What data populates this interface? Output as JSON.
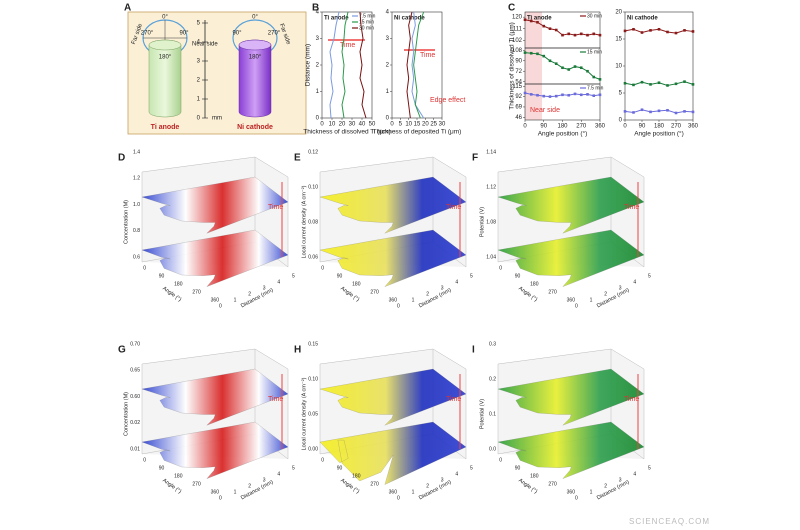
{
  "figure": {
    "panel_labels": [
      "A",
      "B",
      "C",
      "D",
      "E",
      "F",
      "G",
      "H",
      "I"
    ],
    "watermark": "SCIENCEAQ.COM"
  },
  "panel_a": {
    "ti_angles": [
      "0°",
      "270°",
      "90°",
      "180°"
    ],
    "ni_angles": [
      "0°",
      "90°",
      "270°",
      "180°"
    ],
    "near_side": "Near side",
    "far_side": "Far side",
    "scale_ticks": [
      0,
      1,
      2,
      3,
      4,
      5
    ],
    "unit": "mm",
    "ti_label": "Ti anode",
    "ni_label": "Ni cathode"
  },
  "chart_data": [
    {
      "type": "line",
      "title": "Ti anode",
      "ylabel": "Distance (mm)",
      "xlabel": "Thickness of dissolved Ti (μm)",
      "xlim": [
        0,
        50
      ],
      "ylim": [
        0,
        4
      ],
      "xticks": [
        0,
        10,
        20,
        30,
        40,
        50
      ],
      "yticks": [
        0,
        1,
        2,
        3,
        4
      ],
      "annotations": [
        "Time"
      ],
      "series": [
        {
          "name": "7.5 min",
          "color": "#7b9be0",
          "x": [
            9,
            8,
            11,
            9,
            10,
            8,
            12,
            14,
            17
          ],
          "values": [
            0,
            0.5,
            1,
            1.5,
            2,
            2.5,
            3,
            3.5,
            4
          ]
        },
        {
          "name": "15 min",
          "color": "#2a9a4a",
          "x": [
            22,
            20,
            23,
            21,
            22,
            20,
            22,
            23,
            26
          ],
          "values": [
            0,
            0.5,
            1,
            1.5,
            2,
            2.5,
            3,
            3.5,
            4
          ]
        },
        {
          "name": "30 min",
          "color": "#7a1010",
          "x": [
            44,
            40,
            42,
            38,
            40,
            38,
            41,
            39,
            38
          ],
          "values": [
            0,
            0.5,
            1,
            1.5,
            2,
            2.5,
            3,
            3.5,
            4
          ]
        }
      ]
    },
    {
      "type": "line",
      "title": "Ni cathode",
      "xlabel": "Thickness of deposited Ti (μm)",
      "xlim": [
        0,
        30
      ],
      "ylim": [
        0,
        4
      ],
      "xticks": [
        0,
        5,
        10,
        15,
        20,
        25,
        30
      ],
      "yticks": [
        0,
        1,
        2,
        3,
        4
      ],
      "annotations": [
        "Time",
        "Edge effect"
      ],
      "series": [
        {
          "color": "#7b9be0",
          "x": [
            19,
            14,
            12,
            13,
            12,
            13,
            12,
            14,
            13
          ],
          "values": [
            0,
            0.5,
            1,
            1.5,
            2,
            2.5,
            3,
            3.5,
            4
          ]
        },
        {
          "color": "#2a9a4a",
          "x": [
            17,
            14,
            15,
            14,
            13,
            14,
            15,
            16,
            19
          ],
          "values": [
            0,
            0.5,
            1,
            1.5,
            2,
            2.5,
            3,
            3.5,
            4
          ]
        },
        {
          "color": "#7a1010",
          "x": [
            11,
            10,
            9,
            10,
            9,
            10,
            11,
            10,
            12
          ],
          "values": [
            0,
            0.5,
            1,
            1.5,
            2,
            2.5,
            3,
            3.5,
            4
          ]
        }
      ]
    },
    {
      "type": "line",
      "title": "Ti anode",
      "xlim": [
        0,
        360
      ],
      "ylim": [
        96,
        124
      ],
      "yticks": [
        102,
        111,
        120
      ],
      "x": [
        0,
        30,
        60,
        90,
        120,
        150,
        180,
        210,
        240,
        270,
        300,
        330,
        360
      ],
      "series": [
        {
          "name": "30 min",
          "color": "#8b1a1a",
          "values": [
            118,
            117,
            116,
            113,
            111,
            110,
            106,
            107,
            106,
            107,
            106,
            107,
            106
          ]
        }
      ]
    },
    {
      "type": "line",
      "ylabel": "Thickness of dissolved Ti (μm)",
      "xlim": [
        0,
        360
      ],
      "ylim": [
        50,
        112
      ],
      "yticks": [
        54,
        72,
        90,
        108
      ],
      "x": [
        0,
        30,
        60,
        90,
        120,
        150,
        180,
        210,
        240,
        270,
        300,
        330,
        360
      ],
      "series": [
        {
          "name": "15 min",
          "color": "#1a7a3a",
          "values": [
            104,
            103,
            102,
            98,
            90,
            85,
            78,
            75,
            80,
            78,
            72,
            62,
            58
          ]
        }
      ]
    },
    {
      "type": "line",
      "xlabel": "Angle position (°)",
      "xlim": [
        0,
        360
      ],
      "ylim": [
        40,
        120
      ],
      "yticks": [
        46,
        69,
        92,
        115
      ],
      "xticks": [
        0,
        90,
        180,
        270,
        360
      ],
      "annotations": [
        "Near side"
      ],
      "x": [
        0,
        30,
        60,
        90,
        120,
        150,
        180,
        210,
        240,
        270,
        300,
        330,
        360
      ],
      "series": [
        {
          "name": "7.5 min",
          "color": "#6b6bdc",
          "values": [
            100,
            97,
            95,
            93,
            92,
            93,
            96,
            95,
            98,
            96,
            97,
            94,
            96
          ]
        }
      ]
    },
    {
      "type": "line",
      "title": "Ni cathode",
      "xlabel": "Angle position (°)",
      "xlim": [
        0,
        360
      ],
      "ylim": [
        0,
        20
      ],
      "yticks": [
        0,
        5,
        10,
        15,
        20
      ],
      "xticks": [
        0,
        90,
        180,
        270,
        360
      ],
      "x": [
        0,
        45,
        90,
        135,
        180,
        225,
        270,
        315,
        360
      ],
      "series": [
        {
          "color": "#8b1a1a",
          "values": [
            16.5,
            16.8,
            16.2,
            16.6,
            16.8,
            16.3,
            16.1,
            16.6,
            16.4
          ]
        },
        {
          "color": "#1a7a3a",
          "values": [
            6.8,
            6.5,
            7.0,
            6.6,
            6.9,
            6.4,
            6.7,
            7.1,
            6.6
          ]
        },
        {
          "color": "#6b6bdc",
          "values": [
            1.6,
            1.4,
            1.9,
            1.5,
            1.7,
            1.8,
            1.3,
            1.6,
            1.5
          ]
        }
      ]
    }
  ],
  "surface_panels": [
    {
      "zlabel": "Concentration (M)",
      "zticks": [
        "0.6",
        "0.8",
        "1.0",
        "1.2",
        "1.4"
      ],
      "xlabel": "Angle (°)",
      "ylabel": "Distance (mm)",
      "xticks": [
        "0",
        "90",
        "180",
        "270",
        "360"
      ],
      "yticks": [
        "0",
        "1",
        "2",
        "3",
        "4",
        "5"
      ],
      "annotation": "Time"
    },
    {
      "zlabel": "Local current density (A cm⁻²)",
      "zticks": [
        "0.06",
        "0.08",
        "0.10",
        "0.12"
      ],
      "xlabel": "Angle (°)",
      "ylabel": "Distance (mm)",
      "xticks": [
        "0",
        "90",
        "180",
        "270",
        "360"
      ],
      "yticks": [
        "0",
        "1",
        "2",
        "3",
        "4",
        "5"
      ],
      "annotation": "Time"
    },
    {
      "zlabel": "Potential (V)",
      "zticks": [
        "1.04",
        "1.08",
        "1.12",
        "1.14"
      ],
      "xlabel": "Angle (°)",
      "ylabel": "Distance (mm)",
      "xticks": [
        "0",
        "90",
        "180",
        "270",
        "360"
      ],
      "yticks": [
        "0",
        "1",
        "2",
        "3",
        "4",
        "5"
      ],
      "annotation": "Time"
    },
    {
      "zlabel": "Concentration (M)",
      "zticks": [
        "0.01",
        "0.02",
        "0.60",
        "0.65",
        "0.70"
      ],
      "xlabel": "Angle (°)",
      "ylabel": "Distance (mm)",
      "xticks": [
        "0",
        "90",
        "180",
        "270",
        "360"
      ],
      "yticks": [
        "0",
        "1",
        "2",
        "3",
        "4",
        "5"
      ],
      "annotation": "Time"
    },
    {
      "zlabel": "Local current density (A cm⁻²)",
      "zticks": [
        "0.00",
        "0.05",
        "0.10",
        "0.15"
      ],
      "xlabel": "Angle (°)",
      "ylabel": "Distance (mm)",
      "xticks": [
        "0",
        "90",
        "180",
        "270",
        "360"
      ],
      "yticks": [
        "0",
        "1",
        "2",
        "3",
        "4",
        "5"
      ],
      "annotation": "Time"
    },
    {
      "zlabel": "Potential (V)",
      "zticks": [
        "0.0",
        "0.1",
        "0.2",
        "0.3"
      ],
      "xlabel": "Angle (°)",
      "ylabel": "Distance (mm)",
      "xticks": [
        "0",
        "90",
        "180",
        "270",
        "360"
      ],
      "yticks": [
        "0",
        "1",
        "2",
        "3",
        "4",
        "5"
      ],
      "annotation": "Time"
    }
  ]
}
